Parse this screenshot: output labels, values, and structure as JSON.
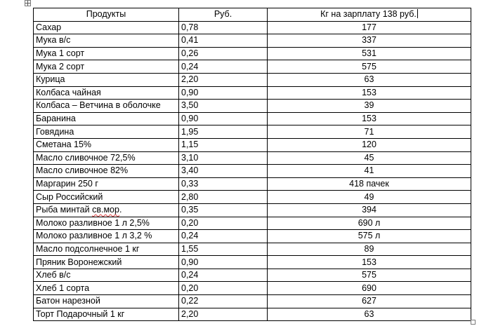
{
  "table": {
    "headers": [
      "Продукты",
      "Руб.",
      "Кг на зарплату 138 руб."
    ],
    "rows": [
      {
        "product": "Сахар",
        "price": "0,78",
        "amount": "177"
      },
      {
        "product": "Мука в/с",
        "price": "0,41",
        "amount": "337"
      },
      {
        "product": "Мука 1 сорт",
        "price": "0,26",
        "amount": "531"
      },
      {
        "product": "Мука 2 сорт",
        "price": "0,24",
        "amount": "575"
      },
      {
        "product": "Курица",
        "price": "2,20",
        "amount": "63"
      },
      {
        "product": "Колбаса чайная",
        "price": "0,90",
        "amount": "153"
      },
      {
        "product": "Колбаса – Ветчина в оболочке",
        "price": "3,50",
        "amount": "39"
      },
      {
        "product": "Баранина",
        "price": "0,90",
        "amount": "153"
      },
      {
        "product": "Говядина",
        "price": "1,95",
        "amount": "71"
      },
      {
        "product": "Сметана 15%",
        "price": "1,15",
        "amount": "120"
      },
      {
        "product": "Масло сливочное 72,5%",
        "price": "3,10",
        "amount": "45"
      },
      {
        "product": "Масло сливочное 82%",
        "price": "3,40",
        "amount": "41"
      },
      {
        "product": "Маргарин 250 г",
        "price": "0,33",
        "amount": "418 пачек"
      },
      {
        "product": "Сыр Российский",
        "price": "2,80",
        "amount": "49"
      },
      {
        "product_prefix": "Рыба минтай ",
        "product_spell": "св.мор",
        "product_suffix": ".",
        "price": "0,35",
        "amount": "394"
      },
      {
        "product": "Молоко разливное 1 л 2,5%",
        "price": "0,20",
        "amount": "690 л"
      },
      {
        "product": "Молоко разливное 1 л 3,2 %",
        "price": "0,24",
        "amount": "575 л"
      },
      {
        "product": "Масло подсолнечное 1 кг",
        "price": "1,55",
        "amount": "89"
      },
      {
        "product": "Пряник Воронежский",
        "price": "0,90",
        "amount": "153"
      },
      {
        "product": "Хлеб в/с",
        "price": "0,24",
        "amount": "575"
      },
      {
        "product": "Хлеб 1 сорта",
        "price": "0,20",
        "amount": "690"
      },
      {
        "product": "Батон нарезной",
        "price": "0,22",
        "amount": "627"
      },
      {
        "product": "Торт Подарочный 1 кг",
        "price": "2,20",
        "amount": "63"
      }
    ]
  }
}
